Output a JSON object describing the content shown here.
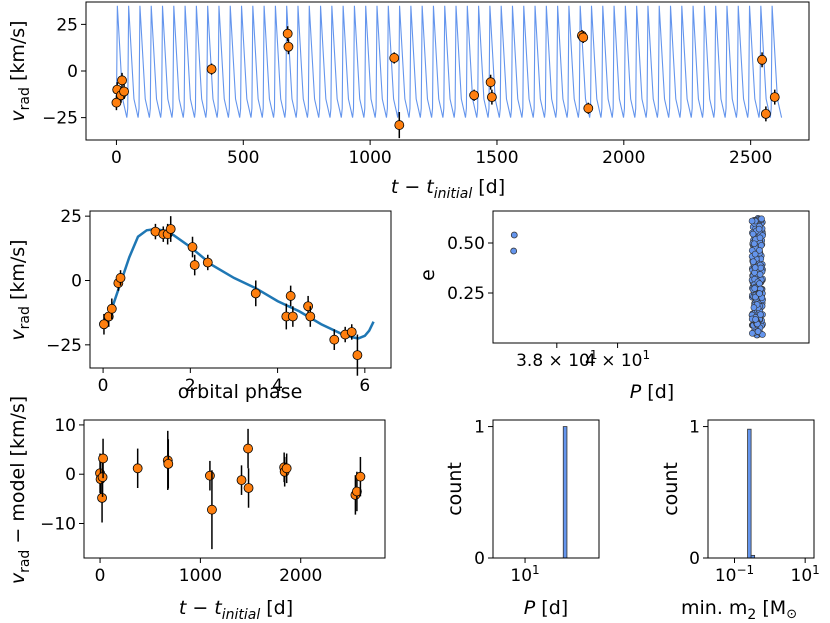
{
  "colors": {
    "model": "#6495ed",
    "fit": "#1f77b4",
    "point": "#ff7f0e",
    "hist": "#6495ed"
  },
  "chart_data": [
    {
      "id": "rv_time",
      "type": "scatter",
      "xlabel_main": "t − t",
      "xlabel_sub": "initial",
      "xlabel_unit": " [d]",
      "ylabel_main": "v",
      "ylabel_sub": "rad",
      "ylabel_unit": " [km/s]",
      "xlim": [
        -120,
        2730
      ],
      "ylim": [
        -37,
        37
      ],
      "xticks": [
        "0",
        "500",
        "1000",
        "1500",
        "2000",
        "2500"
      ],
      "yticks": [
        "25",
        "0",
        "−25"
      ],
      "model_period_days": 44.5,
      "model_amplitude": [
        -25,
        35
      ],
      "points": [
        {
          "x": 0,
          "y": -17,
          "err": 4
        },
        {
          "x": 3,
          "y": -10,
          "err": 4
        },
        {
          "x": 18,
          "y": -13,
          "err": 4
        },
        {
          "x": 22,
          "y": -5,
          "err": 4
        },
        {
          "x": 30,
          "y": -11,
          "err": 4
        },
        {
          "x": 375,
          "y": 1,
          "err": 3
        },
        {
          "x": 675,
          "y": 20,
          "err": 4
        },
        {
          "x": 678,
          "y": 13,
          "err": 4
        },
        {
          "x": 1095,
          "y": 7,
          "err": 3
        },
        {
          "x": 1115,
          "y": -29,
          "err": 7
        },
        {
          "x": 1410,
          "y": -13,
          "err": 3
        },
        {
          "x": 1475,
          "y": -6,
          "err": 4
        },
        {
          "x": 1480,
          "y": -14,
          "err": 4
        },
        {
          "x": 1835,
          "y": 19,
          "err": 3
        },
        {
          "x": 1840,
          "y": 18,
          "err": 3
        },
        {
          "x": 1860,
          "y": -20,
          "err": 3
        },
        {
          "x": 2545,
          "y": 6,
          "err": 4
        },
        {
          "x": 2560,
          "y": -23,
          "err": 4
        },
        {
          "x": 2595,
          "y": -14,
          "err": 4
        }
      ]
    },
    {
      "id": "phase",
      "type": "scatter",
      "xlabel": "orbital phase",
      "ylabel_main": "v",
      "ylabel_sub": "rad",
      "ylabel_unit": " [km/s]",
      "xlim": [
        -0.3,
        6.6
      ],
      "ylim": [
        -34,
        27
      ],
      "xticks": [
        "0",
        "2",
        "4",
        "6"
      ],
      "yticks": [
        "25",
        "0",
        "−25"
      ],
      "curve": [
        [
          0.0,
          -17
        ],
        [
          0.2,
          -11
        ],
        [
          0.4,
          -1
        ],
        [
          0.6,
          9
        ],
        [
          0.8,
          17
        ],
        [
          1.0,
          19.5
        ],
        [
          1.2,
          20
        ],
        [
          1.5,
          19
        ],
        [
          2.0,
          13
        ],
        [
          2.5,
          6
        ],
        [
          3.0,
          1
        ],
        [
          3.5,
          -3
        ],
        [
          4.0,
          -8
        ],
        [
          4.5,
          -12
        ],
        [
          5.0,
          -17
        ],
        [
          5.5,
          -21
        ],
        [
          5.7,
          -22
        ],
        [
          5.85,
          -22.5
        ],
        [
          6.0,
          -21.5
        ],
        [
          6.1,
          -19.5
        ],
        [
          6.2,
          -16
        ]
      ],
      "points": [
        {
          "x": 0.02,
          "y": -17,
          "err": 4
        },
        {
          "x": 0.13,
          "y": -14,
          "err": 4
        },
        {
          "x": 0.2,
          "y": -11,
          "err": 4
        },
        {
          "x": 0.35,
          "y": -1,
          "err": 3
        },
        {
          "x": 0.4,
          "y": 1,
          "err": 3
        },
        {
          "x": 1.2,
          "y": 19,
          "err": 3
        },
        {
          "x": 1.38,
          "y": 18,
          "err": 3
        },
        {
          "x": 1.48,
          "y": 18,
          "err": 4
        },
        {
          "x": 1.55,
          "y": 20,
          "err": 5
        },
        {
          "x": 2.05,
          "y": 13,
          "err": 4
        },
        {
          "x": 2.1,
          "y": 6,
          "err": 4
        },
        {
          "x": 2.4,
          "y": 7,
          "err": 3
        },
        {
          "x": 3.5,
          "y": -5,
          "err": 5
        },
        {
          "x": 4.2,
          "y": -14,
          "err": 5
        },
        {
          "x": 4.3,
          "y": -6,
          "err": 4
        },
        {
          "x": 4.35,
          "y": -14,
          "err": 4
        },
        {
          "x": 4.7,
          "y": -10,
          "err": 4
        },
        {
          "x": 4.75,
          "y": -14,
          "err": 4
        },
        {
          "x": 5.3,
          "y": -23,
          "err": 4
        },
        {
          "x": 5.55,
          "y": -21,
          "err": 3
        },
        {
          "x": 5.7,
          "y": -20,
          "err": 3
        },
        {
          "x": 5.83,
          "y": -29,
          "err": 8
        }
      ]
    },
    {
      "id": "p_e",
      "type": "scatter",
      "xlabel_main": "P",
      "xlabel_unit": " [d]",
      "ylabel": "e",
      "xlim": [
        35.9,
        46.3
      ],
      "ylim": [
        0.0,
        0.66
      ],
      "xticks": [
        "3.8 × 10",
        "4 × 10"
      ],
      "xtick_exp": "1",
      "yticks": [
        "0.50",
        "0.25"
      ],
      "isolated_points": [
        {
          "x": 36.6,
          "y": 0.54
        },
        {
          "x": 36.58,
          "y": 0.46
        }
      ],
      "cluster": {
        "x": 44.6,
        "y_min": 0.04,
        "y_max": 0.64
      }
    },
    {
      "id": "residuals",
      "type": "scatter",
      "ylabel": "v_rad − model [km/s]",
      "ylabel_main": "v",
      "ylabel_sub": "rad",
      "ylabel_unit": " − model [km/s]",
      "xlabel_main": "t − t",
      "xlabel_sub": "initial",
      "xlabel_unit": " [d]",
      "xlim": [
        -160,
        2840
      ],
      "ylim": [
        -17,
        11
      ],
      "xticks": [
        "0",
        "1000",
        "2000"
      ],
      "yticks": [
        "10",
        "0",
        "−10"
      ],
      "points": [
        {
          "x": 0,
          "y": 0.2,
          "err": 4
        },
        {
          "x": 5,
          "y": -1,
          "err": 4
        },
        {
          "x": 20,
          "y": -4.8,
          "err": 5
        },
        {
          "x": 25,
          "y": -0.6,
          "err": 4
        },
        {
          "x": 30,
          "y": 3.2,
          "err": 4
        },
        {
          "x": 375,
          "y": 1.2,
          "err": 4
        },
        {
          "x": 675,
          "y": 2.8,
          "err": 6
        },
        {
          "x": 680,
          "y": 2.1,
          "err": 5
        },
        {
          "x": 1095,
          "y": -0.3,
          "err": 3
        },
        {
          "x": 1115,
          "y": -7.2,
          "err": 8
        },
        {
          "x": 1410,
          "y": -1.2,
          "err": 3
        },
        {
          "x": 1475,
          "y": 5.2,
          "err": 4
        },
        {
          "x": 1480,
          "y": -2.8,
          "err": 4
        },
        {
          "x": 1835,
          "y": 1.4,
          "err": 3
        },
        {
          "x": 1840,
          "y": 0.5,
          "err": 3
        },
        {
          "x": 1860,
          "y": 1.2,
          "err": 3
        },
        {
          "x": 2545,
          "y": -4.2,
          "err": 4
        },
        {
          "x": 2560,
          "y": -3.5,
          "err": 4
        },
        {
          "x": 2595,
          "y": -0.5,
          "err": 4
        }
      ]
    },
    {
      "id": "hist_p",
      "type": "bar",
      "xlabel_main": "P",
      "xlabel_unit": " [d]",
      "ylabel": "count",
      "xscale": "log",
      "xlim_log10": [
        0.48,
        1.6
      ],
      "ylim": [
        0,
        1.05
      ],
      "xticks": [
        "10"
      ],
      "xtick_exp": "1",
      "yticks": [
        "1",
        "0"
      ],
      "bars": [
        {
          "log10_left": 1.62,
          "log10_right": 1.68,
          "value": 1.0
        }
      ]
    },
    {
      "id": "hist_m2",
      "type": "bar",
      "xlabel_main": "min. m",
      "xlabel_sub": "2",
      "xlabel_unit": " [M",
      "ylabel": "count",
      "xscale": "log",
      "xlim_log10": [
        -1.75,
        1.25
      ],
      "ylim": [
        0,
        1.05
      ],
      "xticks": [
        "10",
        "10"
      ],
      "xtick_exps": [
        "−1",
        "1"
      ],
      "yticks": [
        "1",
        "0"
      ],
      "bars": [
        {
          "log10_left": -0.63,
          "log10_right": -0.53,
          "value": 0.98
        },
        {
          "log10_left": -0.53,
          "log10_right": -0.43,
          "value": 0.02
        }
      ]
    }
  ]
}
